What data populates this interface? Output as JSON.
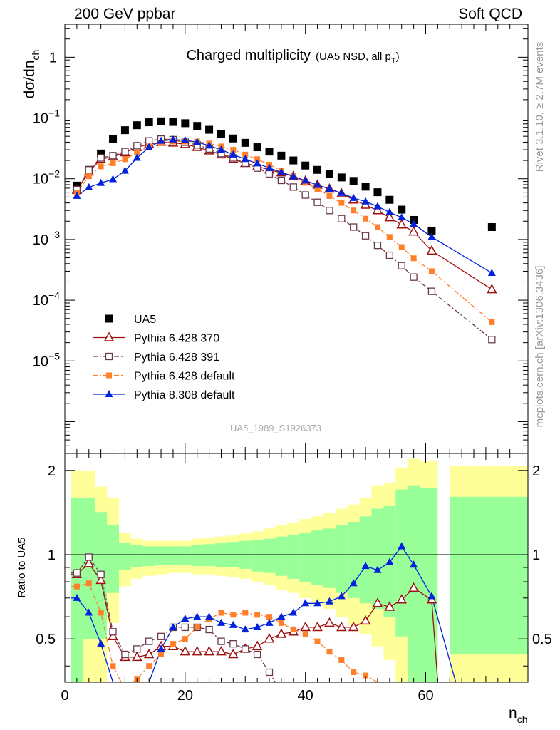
{
  "header": {
    "left": "200 GeV ppbar",
    "right": "Soft QCD"
  },
  "side_labels": {
    "rivet": "Rivet 3.1.10, ≥ 2.7M events",
    "mcplots": "mcplots.cern.ch [arXiv:1306.3436]"
  },
  "colors": {
    "ua5": "#000000",
    "p370": "#a01010",
    "p391": "#6b3a4a",
    "pdef": "#ff7f2a",
    "p8": "#0022dd",
    "band_yellow": "#ffff99",
    "band_green": "#99ff99"
  },
  "chart_data": [
    {
      "type": "scatter",
      "panel": "main",
      "title": "Charged multiplicity",
      "title_suffix": "(UA5 NSD, all p",
      "title_sub": "T",
      "title_close": ")",
      "ylabel": "dσ/dn",
      "ylabel_sub": "ch",
      "xlim": [
        0,
        77
      ],
      "ylim": [
        3e-07,
        3.5
      ],
      "yscale": "log",
      "yticks": [
        {
          "v": 1,
          "label": "1",
          "exp": ""
        },
        {
          "v": 0.1,
          "label": "10",
          "exp": "−1"
        },
        {
          "v": 0.01,
          "label": "10",
          "exp": "−2"
        },
        {
          "v": 0.001,
          "label": "10",
          "exp": "−3"
        },
        {
          "v": 0.0001,
          "label": "10",
          "exp": "−4"
        },
        {
          "v": 1e-05,
          "label": "10",
          "exp": "−5"
        }
      ],
      "watermark": "UA5_1989_S1926373",
      "legend_position": "middle-left",
      "series": [
        {
          "name": "UA5",
          "marker": "square",
          "x": [
            2,
            4,
            6,
            8,
            10,
            12,
            14,
            16,
            18,
            20,
            22,
            24,
            26,
            28,
            30,
            32,
            34,
            36,
            38,
            40,
            42,
            44,
            46,
            48,
            50,
            52,
            54,
            56,
            58,
            61,
            71
          ],
          "y": [
            0.0077,
            0.014,
            0.026,
            0.045,
            0.063,
            0.076,
            0.085,
            0.088,
            0.086,
            0.082,
            0.074,
            0.064,
            0.055,
            0.046,
            0.039,
            0.033,
            0.028,
            0.024,
            0.02,
            0.0165,
            0.014,
            0.012,
            0.0105,
            0.0092,
            0.0074,
            0.006,
            0.0045,
            0.0031,
            0.0021,
            0.0014,
            0.0016
          ]
        },
        {
          "name": "Pythia 6.428 370",
          "marker": "open-triangle",
          "line": "solid",
          "x": [
            2,
            4,
            6,
            8,
            10,
            12,
            14,
            16,
            18,
            20,
            22,
            24,
            26,
            28,
            30,
            32,
            34,
            36,
            38,
            40,
            42,
            44,
            46,
            48,
            50,
            52,
            54,
            56,
            58,
            61,
            71
          ],
          "y": [
            0.0065,
            0.013,
            0.021,
            0.023,
            0.027,
            0.033,
            0.037,
            0.04,
            0.039,
            0.037,
            0.033,
            0.029,
            0.025,
            0.021,
            0.018,
            0.016,
            0.014,
            0.0126,
            0.011,
            0.0092,
            0.0079,
            0.0068,
            0.0057,
            0.0045,
            0.0037,
            0.003,
            0.0023,
            0.00175,
            0.00134,
            0.00065,
            0.00015
          ]
        },
        {
          "name": "Pythia 6.428 391",
          "marker": "open-square",
          "line": "dashdot",
          "x": [
            2,
            4,
            6,
            8,
            10,
            12,
            14,
            16,
            18,
            20,
            22,
            24,
            26,
            28,
            30,
            32,
            34,
            36,
            38,
            40,
            42,
            44,
            46,
            48,
            50,
            52,
            54,
            56,
            58,
            61,
            71
          ],
          "y": [
            0.0066,
            0.014,
            0.022,
            0.024,
            0.028,
            0.035,
            0.042,
            0.045,
            0.044,
            0.04,
            0.036,
            0.031,
            0.026,
            0.022,
            0.018,
            0.015,
            0.012,
            0.0094,
            0.0073,
            0.0054,
            0.0041,
            0.003,
            0.0022,
            0.0016,
            0.00115,
            0.0008,
            0.00055,
            0.00037,
            0.00024,
            0.00014,
            2.25e-05
          ]
        },
        {
          "name": "Pythia 6.428 default",
          "marker": "filled-square",
          "line": "dashdot",
          "x": [
            2,
            4,
            6,
            8,
            10,
            12,
            14,
            16,
            18,
            20,
            22,
            24,
            26,
            28,
            30,
            32,
            34,
            36,
            38,
            40,
            42,
            44,
            46,
            48,
            50,
            52,
            54,
            56,
            58,
            61,
            71
          ],
          "y": [
            0.0059,
            0.011,
            0.016,
            0.018,
            0.021,
            0.027,
            0.034,
            0.039,
            0.041,
            0.041,
            0.041,
            0.038,
            0.034,
            0.03,
            0.025,
            0.021,
            0.017,
            0.0137,
            0.011,
            0.0086,
            0.0068,
            0.0052,
            0.004,
            0.003,
            0.0022,
            0.0016,
            0.0011,
            0.00075,
            0.00049,
            0.0003,
            4.35e-05
          ]
        },
        {
          "name": "Pythia 8.308 default",
          "marker": "filled-triangle",
          "line": "solid",
          "x": [
            2,
            4,
            6,
            8,
            10,
            12,
            14,
            16,
            18,
            20,
            22,
            24,
            26,
            28,
            30,
            32,
            34,
            36,
            38,
            40,
            42,
            44,
            46,
            48,
            50,
            52,
            54,
            56,
            58,
            61,
            71
          ],
          "y": [
            0.0052,
            0.0072,
            0.0085,
            0.0098,
            0.0135,
            0.022,
            0.033,
            0.042,
            0.044,
            0.043,
            0.04,
            0.035,
            0.03,
            0.025,
            0.021,
            0.0178,
            0.015,
            0.0128,
            0.0109,
            0.0093,
            0.0079,
            0.0068,
            0.0058,
            0.0048,
            0.0042,
            0.0035,
            0.0028,
            0.0023,
            0.0018,
            0.0011,
            0.00028
          ]
        }
      ]
    },
    {
      "type": "line",
      "panel": "ratio",
      "ylabel": "Ratio to UA5",
      "xlabel": "n",
      "xlabel_sub": "ch",
      "xlim": [
        0,
        77
      ],
      "ylim": [
        0.35,
        2.3
      ],
      "yscale": "log",
      "xticks": [
        0,
        20,
        40,
        60
      ],
      "yticks": [
        0.5,
        1,
        2
      ],
      "bands": {
        "edges": [
          1,
          3,
          5,
          7,
          9,
          11,
          13,
          15,
          17,
          19,
          21,
          23,
          25,
          27,
          29,
          31,
          33,
          35,
          37,
          39,
          41,
          43,
          45,
          47,
          49,
          51,
          53,
          55,
          57,
          59,
          62,
          64,
          78
        ],
        "yellow_lo": [
          0.35,
          0.35,
          0.35,
          0.57,
          0.77,
          0.82,
          0.84,
          0.85,
          0.86,
          0.86,
          0.85,
          0.85,
          0.84,
          0.83,
          0.82,
          0.8,
          0.78,
          0.75,
          0.73,
          0.7,
          0.67,
          0.64,
          0.6,
          0.56,
          0.52,
          0.47,
          0.42,
          0.35,
          0.35,
          0.35,
          null,
          0.35
        ],
        "yellow_hi": [
          2.0,
          2.0,
          1.75,
          1.6,
          1.2,
          1.14,
          1.12,
          1.12,
          1.12,
          1.12,
          1.14,
          1.15,
          1.16,
          1.17,
          1.19,
          1.21,
          1.24,
          1.28,
          1.3,
          1.34,
          1.37,
          1.41,
          1.46,
          1.51,
          1.6,
          1.76,
          1.81,
          2.05,
          2.2,
          2.16,
          null,
          2.08
        ],
        "green_lo": [
          0.35,
          0.5,
          0.5,
          0.73,
          0.88,
          0.9,
          0.91,
          0.92,
          0.92,
          0.92,
          0.91,
          0.91,
          0.9,
          0.9,
          0.89,
          0.87,
          0.86,
          0.84,
          0.82,
          0.8,
          0.78,
          0.76,
          0.73,
          0.7,
          0.67,
          0.64,
          0.6,
          0.51,
          0.35,
          0.35,
          null,
          0.44
        ],
        "green_hi": [
          1.6,
          1.6,
          1.42,
          1.28,
          1.1,
          1.08,
          1.07,
          1.07,
          1.07,
          1.07,
          1.08,
          1.09,
          1.1,
          1.11,
          1.12,
          1.13,
          1.14,
          1.16,
          1.18,
          1.2,
          1.22,
          1.24,
          1.28,
          1.31,
          1.37,
          1.46,
          1.49,
          1.71,
          1.76,
          1.73,
          null,
          1.61
        ]
      },
      "series": [
        {
          "name": "Pythia 6.428 370",
          "x": [
            1,
            2,
            4,
            6,
            8,
            10,
            12,
            14,
            16,
            18,
            20,
            22,
            24,
            26,
            28,
            30,
            32,
            34,
            36,
            38,
            40,
            42,
            44,
            46,
            48,
            50,
            52,
            54,
            56,
            58,
            61,
            62
          ],
          "y": [
            0.85,
            0.85,
            0.93,
            0.81,
            0.51,
            0.43,
            0.43,
            0.44,
            0.47,
            0.47,
            0.45,
            0.45,
            0.45,
            0.45,
            0.44,
            0.46,
            0.47,
            0.5,
            0.52,
            0.53,
            0.55,
            0.55,
            0.57,
            0.55,
            0.55,
            0.58,
            0.67,
            0.65,
            0.69,
            0.76,
            0.69,
            0.35
          ]
        },
        {
          "name": "Pythia 6.428 391",
          "x": [
            1,
            2,
            4,
            6,
            8,
            10,
            12,
            14,
            16,
            18,
            20,
            22,
            24,
            26,
            28,
            30,
            32,
            34,
            35
          ],
          "y": [
            0.86,
            0.86,
            0.98,
            0.85,
            0.53,
            0.44,
            0.46,
            0.49,
            0.51,
            0.55,
            0.55,
            0.55,
            0.54,
            0.49,
            0.48,
            0.46,
            0.44,
            0.38,
            0.35
          ]
        },
        {
          "name": "Pythia 6.428 default",
          "x": [
            1,
            2,
            4,
            6,
            8,
            10,
            12,
            14,
            16,
            18,
            20,
            22,
            24,
            26,
            28,
            30,
            32,
            34,
            36,
            38,
            40,
            42,
            44,
            46,
            48,
            50,
            52,
            53
          ],
          "y": [
            0.77,
            0.77,
            0.79,
            0.62,
            0.4,
            0.33,
            0.36,
            0.4,
            0.44,
            0.48,
            0.5,
            0.55,
            0.59,
            0.62,
            0.61,
            0.62,
            0.61,
            0.6,
            0.57,
            0.54,
            0.52,
            0.49,
            0.45,
            0.42,
            0.38,
            0.37,
            0.35,
            0.35
          ]
        },
        {
          "name": "Pythia 8.308 default",
          "x": [
            1,
            2,
            4,
            6,
            8,
            10,
            12,
            14,
            16,
            18,
            20,
            22,
            24,
            26,
            28,
            30,
            32,
            34,
            36,
            38,
            40,
            42,
            44,
            46,
            48,
            50,
            52,
            54,
            56,
            58,
            61,
            65
          ],
          "y": [
            0.7,
            0.7,
            0.62,
            0.48,
            0.35,
            0.35,
            0.35,
            0.35,
            0.46,
            0.55,
            0.59,
            0.6,
            0.6,
            0.57,
            0.56,
            0.54,
            0.55,
            0.57,
            0.6,
            0.62,
            0.67,
            0.67,
            0.68,
            0.71,
            0.79,
            0.91,
            0.88,
            0.94,
            1.07,
            0.92,
            0.71,
            0.35
          ]
        }
      ]
    }
  ]
}
